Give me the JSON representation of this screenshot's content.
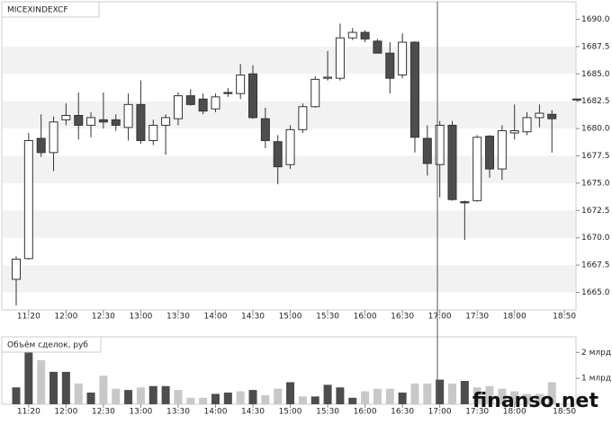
{
  "chart_data": [
    {
      "type": "candlestick",
      "title": "MICEXINDEXCF",
      "categories": [
        null,
        "11:20",
        null,
        null,
        "12:00",
        null,
        null,
        "12:30",
        null,
        null,
        "13:00",
        null,
        null,
        "13:30",
        null,
        null,
        "14:00",
        null,
        null,
        "14:30",
        null,
        null,
        "15:00",
        null,
        null,
        "15:30",
        null,
        null,
        "16:00",
        null,
        null,
        "16:30",
        null,
        null,
        "17:00",
        null,
        null,
        "17:30",
        null,
        null,
        "18:00",
        null,
        null,
        null,
        "18:50",
        null
      ],
      "open": [
        1666.2,
        1668.1,
        1679.1,
        1677.8,
        1680.8,
        1681.2,
        1680.3,
        1680.8,
        1680.8,
        1680.1,
        1682.2,
        1678.9,
        1680.3,
        1680.9,
        1683.0,
        1682.7,
        1681.8,
        1683.3,
        1683.2,
        1685.0,
        1680.9,
        1678.8,
        1676.7,
        1679.9,
        1682.0,
        1684.6,
        1684.6,
        1688.3,
        1688.8,
        1688.0,
        1686.9,
        1684.9,
        1687.9,
        1679.1,
        1676.7,
        1680.3,
        1673.3,
        1673.4,
        1679.3,
        1676.3,
        1679.6,
        1679.7,
        1681.0,
        1681.3,
        null,
        1682.7
      ],
      "high": [
        1668.3,
        1679.6,
        1681.3,
        1681.1,
        1682.3,
        1683.3,
        1681.5,
        1683.3,
        1681.3,
        1683.2,
        1684.4,
        1680.8,
        1681.3,
        1683.3,
        1683.6,
        1683.2,
        1683.2,
        1683.7,
        1685.9,
        1685.8,
        1681.9,
        1679.4,
        1680.3,
        1682.3,
        1684.8,
        1687.1,
        1689.6,
        1689.2,
        1689.0,
        1688.2,
        1687.9,
        1688.7,
        1688.0,
        1680.3,
        1680.7,
        1680.7,
        1673.4,
        1679.4,
        1679.4,
        1680.3,
        1682.2,
        1681.5,
        1682.2,
        1681.7,
        null,
        1682.7
      ],
      "low": [
        1663.8,
        1668.0,
        1677.4,
        1676.1,
        1680.3,
        1679.0,
        1679.2,
        1680.0,
        1679.8,
        1678.9,
        1678.6,
        1678.5,
        1677.6,
        1680.3,
        1682.1,
        1681.3,
        1681.5,
        1682.9,
        1682.7,
        1680.9,
        1678.2,
        1674.9,
        1676.3,
        1679.6,
        1681.9,
        1684.4,
        1684.4,
        1688.1,
        1687.9,
        1686.9,
        1683.2,
        1684.6,
        1677.8,
        1675.7,
        1673.7,
        1673.4,
        1669.8,
        1673.3,
        1675.5,
        1675.3,
        1679.0,
        1679.4,
        1680.1,
        1677.8,
        null,
        1682.7
      ],
      "close": [
        1668.05,
        1678.9,
        1677.8,
        1680.6,
        1681.2,
        1680.3,
        1681.0,
        1680.6,
        1680.3,
        1682.2,
        1678.9,
        1680.3,
        1681.0,
        1683.0,
        1682.2,
        1681.6,
        1682.9,
        1683.2,
        1684.9,
        1681.0,
        1678.9,
        1676.5,
        1679.9,
        1682.0,
        1684.5,
        1684.7,
        1688.3,
        1688.8,
        1688.2,
        1686.9,
        1684.6,
        1687.9,
        1679.2,
        1676.8,
        1680.3,
        1673.5,
        1673.2,
        1679.2,
        1676.3,
        1679.8,
        1679.8,
        1681.0,
        1681.4,
        1680.9,
        null,
        1682.7
      ],
      "up_color": "#ffffff",
      "down_color": "#4d4d4d",
      "edge_color": "#333333",
      "ylim": [
        1663.4,
        1691.6
      ],
      "yticks": [
        {
          "value": 1665,
          "label": "1665.0"
        },
        {
          "value": 1667.5,
          "label": "1667.5"
        },
        {
          "value": 1670,
          "label": "1670.0"
        },
        {
          "value": 1672.5,
          "label": "1672.5"
        },
        {
          "value": 1675,
          "label": "1675.0"
        },
        {
          "value": 1677.5,
          "label": "1677.5"
        },
        {
          "value": 1680,
          "label": "1680.0"
        },
        {
          "value": 1682.5,
          "label": "1682.5"
        },
        {
          "value": 1685,
          "label": "1685.0"
        },
        {
          "value": 1687.5,
          "label": "1687.5"
        },
        {
          "value": 1690,
          "label": "1690.0"
        }
      ],
      "stripes": true
    },
    {
      "type": "bar",
      "title": "Объём сделок, руб",
      "watermark": "finanso.net",
      "categories": [
        null,
        "11:20",
        null,
        null,
        "12:00",
        null,
        null,
        "12:30",
        null,
        null,
        "13:00",
        null,
        null,
        "13:30",
        null,
        null,
        "14:00",
        null,
        null,
        "14:30",
        null,
        null,
        "15:00",
        null,
        null,
        "15:30",
        null,
        null,
        "16:00",
        null,
        null,
        "16:30",
        null,
        null,
        "17:00",
        null,
        null,
        "17:30",
        null,
        null,
        "18:00",
        null,
        null,
        null,
        "18:50",
        null
      ],
      "values": [
        0.65,
        2.35,
        1.7,
        1.25,
        1.25,
        0.8,
        0.45,
        1.1,
        0.6,
        0.55,
        0.65,
        0.7,
        0.7,
        0.55,
        0.25,
        0.25,
        0.4,
        0.45,
        0.5,
        0.55,
        0.35,
        0.6,
        0.85,
        0.3,
        0.3,
        0.75,
        0.65,
        0.25,
        0.5,
        0.6,
        0.6,
        0.45,
        0.8,
        0.8,
        0.95,
        0.8,
        0.9,
        0.65,
        0.7,
        0.6,
        0.5,
        0.4,
        0.4,
        0.85,
        null,
        null
      ],
      "colors": [
        "#4d4d4d",
        "#4d4d4d",
        "#c8c8c8",
        "#4d4d4d",
        "#4d4d4d",
        "#c8c8c8",
        "#4d4d4d",
        "#c8c8c8",
        "#c8c8c8",
        "#4d4d4d",
        "#c8c8c8",
        "#4d4d4d",
        "#4d4d4d",
        "#c8c8c8",
        "#c8c8c8",
        "#c8c8c8",
        "#4d4d4d",
        "#4d4d4d",
        "#c8c8c8",
        "#4d4d4d",
        "#c8c8c8",
        "#c8c8c8",
        "#4d4d4d",
        "#c8c8c8",
        "#4d4d4d",
        "#4d4d4d",
        "#4d4d4d",
        "#4d4d4d",
        "#c8c8c8",
        "#c8c8c8",
        "#c8c8c8",
        "#4d4d4d",
        "#c8c8c8",
        "#c8c8c8",
        "#4d4d4d",
        "#c8c8c8",
        "#4d4d4d",
        "#c8c8c8",
        "#c8c8c8",
        "#c8c8c8",
        "#c8c8c8",
        "#c8c8c8",
        "#c8c8c8",
        "#c8c8c8",
        null,
        null
      ],
      "ylim": [
        0,
        2.6
      ],
      "yticks": [
        {
          "value": 2,
          "label": "2 млрд"
        },
        {
          "value": 1,
          "label": "1 млрд"
        }
      ]
    }
  ]
}
